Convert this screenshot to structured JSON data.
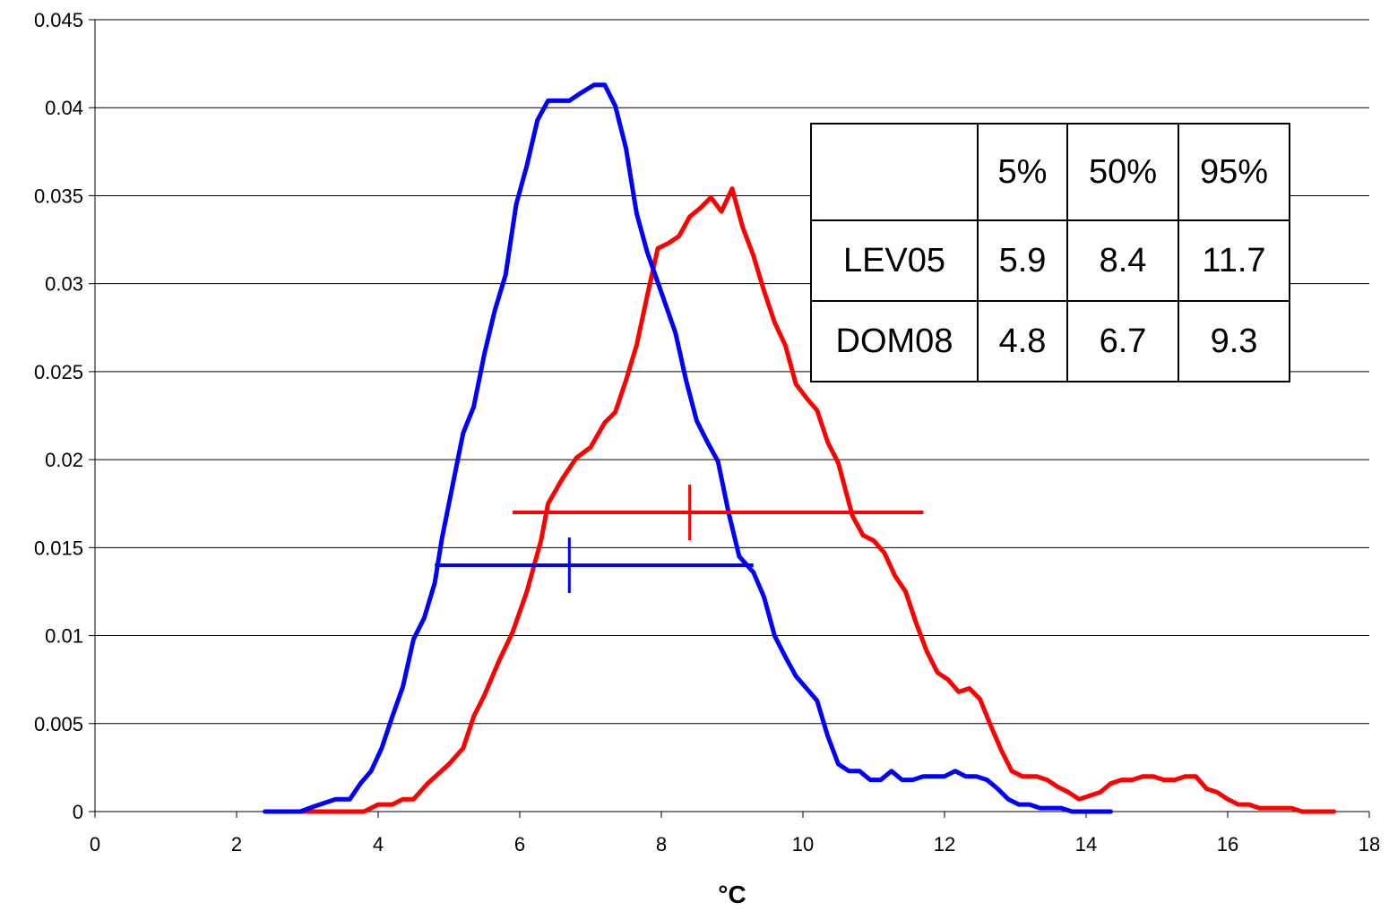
{
  "chart_data": {
    "type": "line",
    "title": "",
    "xlabel": "°C",
    "ylabel": "",
    "xlim": [
      0,
      18
    ],
    "ylim": [
      0,
      0.045
    ],
    "x_ticks": [
      "0",
      "2",
      "4",
      "6",
      "8",
      "10",
      "12",
      "14",
      "16",
      "18"
    ],
    "y_ticks": [
      "0",
      "0.005",
      "0.01",
      "0.015",
      "0.02",
      "0.025",
      "0.03",
      "0.035",
      "0.04",
      "0.045"
    ],
    "grid": "horizontal",
    "series": [
      {
        "color": "#ff0000",
        "points": [
          [
            2.9,
            0
          ],
          [
            3.2,
            0
          ],
          [
            3.5,
            0
          ],
          [
            3.8,
            0
          ],
          [
            4.0,
            0.0004
          ],
          [
            4.2,
            0.0004
          ],
          [
            4.35,
            0.0007
          ],
          [
            4.5,
            0.0007
          ],
          [
            4.7,
            0.0016
          ],
          [
            5.0,
            0.0027
          ],
          [
            5.2,
            0.0036
          ],
          [
            5.35,
            0.0054
          ],
          [
            5.5,
            0.0066
          ],
          [
            5.7,
            0.0085
          ],
          [
            5.9,
            0.0102
          ],
          [
            6.1,
            0.0125
          ],
          [
            6.3,
            0.0154
          ],
          [
            6.4,
            0.0175
          ],
          [
            6.6,
            0.0189
          ],
          [
            6.8,
            0.0201
          ],
          [
            7.0,
            0.0207
          ],
          [
            7.2,
            0.0221
          ],
          [
            7.35,
            0.0227
          ],
          [
            7.5,
            0.0245
          ],
          [
            7.65,
            0.0265
          ],
          [
            7.8,
            0.0293
          ],
          [
            7.95,
            0.032
          ],
          [
            8.1,
            0.0323
          ],
          [
            8.25,
            0.0327
          ],
          [
            8.4,
            0.0338
          ],
          [
            8.55,
            0.0343
          ],
          [
            8.7,
            0.0349
          ],
          [
            8.85,
            0.0341
          ],
          [
            9.0,
            0.0354
          ],
          [
            9.15,
            0.0332
          ],
          [
            9.3,
            0.0316
          ],
          [
            9.45,
            0.0296
          ],
          [
            9.6,
            0.0278
          ],
          [
            9.75,
            0.0265
          ],
          [
            9.9,
            0.0243
          ],
          [
            10.05,
            0.0235
          ],
          [
            10.2,
            0.0228
          ],
          [
            10.35,
            0.021
          ],
          [
            10.5,
            0.0198
          ],
          [
            10.7,
            0.0168
          ],
          [
            10.85,
            0.0157
          ],
          [
            11.0,
            0.0154
          ],
          [
            11.15,
            0.0147
          ],
          [
            11.3,
            0.0134
          ],
          [
            11.45,
            0.0125
          ],
          [
            11.6,
            0.0107
          ],
          [
            11.75,
            0.0091
          ],
          [
            11.9,
            0.0079
          ],
          [
            12.05,
            0.0075
          ],
          [
            12.2,
            0.0068
          ],
          [
            12.35,
            0.007
          ],
          [
            12.5,
            0.0064
          ],
          [
            12.65,
            0.0049
          ],
          [
            12.8,
            0.0035
          ],
          [
            12.95,
            0.0023
          ],
          [
            13.1,
            0.002
          ],
          [
            13.3,
            0.002
          ],
          [
            13.45,
            0.0018
          ],
          [
            13.6,
            0.0014
          ],
          [
            13.75,
            0.0011
          ],
          [
            13.9,
            0.0007
          ],
          [
            14.05,
            0.0009
          ],
          [
            14.2,
            0.0011
          ],
          [
            14.35,
            0.0016
          ],
          [
            14.5,
            0.0018
          ],
          [
            14.65,
            0.0018
          ],
          [
            14.8,
            0.002
          ],
          [
            14.95,
            0.002
          ],
          [
            15.1,
            0.0018
          ],
          [
            15.25,
            0.0018
          ],
          [
            15.4,
            0.002
          ],
          [
            15.55,
            0.002
          ],
          [
            15.7,
            0.0013
          ],
          [
            15.85,
            0.0011
          ],
          [
            16.0,
            0.0007
          ],
          [
            16.15,
            0.0004
          ],
          [
            16.3,
            0.0004
          ],
          [
            16.45,
            0.0002
          ],
          [
            16.6,
            0.0002
          ],
          [
            16.75,
            0.0002
          ],
          [
            16.9,
            0.0002
          ],
          [
            17.05,
            0
          ],
          [
            17.2,
            0
          ],
          [
            17.4,
            0
          ],
          [
            17.5,
            0
          ]
        ],
        "interval": {
          "y": 0.017,
          "p5": 5.9,
          "p50": 8.4,
          "p95": 11.7
        }
      },
      {
        "color": "#0000ff",
        "points": [
          [
            2.4,
            0
          ],
          [
            2.6,
            0
          ],
          [
            2.9,
            0
          ],
          [
            3.1,
            0.0003
          ],
          [
            3.4,
            0.0007
          ],
          [
            3.6,
            0.0007
          ],
          [
            3.75,
            0.0016
          ],
          [
            3.9,
            0.0023
          ],
          [
            4.05,
            0.0036
          ],
          [
            4.2,
            0.0054
          ],
          [
            4.35,
            0.0071
          ],
          [
            4.5,
            0.0098
          ],
          [
            4.65,
            0.011
          ],
          [
            4.8,
            0.013
          ],
          [
            4.9,
            0.0155
          ],
          [
            5.05,
            0.0185
          ],
          [
            5.2,
            0.0215
          ],
          [
            5.35,
            0.023
          ],
          [
            5.5,
            0.026
          ],
          [
            5.65,
            0.0285
          ],
          [
            5.8,
            0.0305
          ],
          [
            5.95,
            0.0345
          ],
          [
            6.1,
            0.0367
          ],
          [
            6.25,
            0.0393
          ],
          [
            6.4,
            0.0404
          ],
          [
            6.55,
            0.0404
          ],
          [
            6.7,
            0.0404
          ],
          [
            6.85,
            0.0408
          ],
          [
            7.05,
            0.0413
          ],
          [
            7.2,
            0.0413
          ],
          [
            7.35,
            0.0401
          ],
          [
            7.5,
            0.0377
          ],
          [
            7.65,
            0.034
          ],
          [
            7.8,
            0.0318
          ],
          [
            8.0,
            0.0295
          ],
          [
            8.2,
            0.0272
          ],
          [
            8.35,
            0.0245
          ],
          [
            8.5,
            0.0222
          ],
          [
            8.65,
            0.021
          ],
          [
            8.8,
            0.0199
          ],
          [
            8.95,
            0.017
          ],
          [
            9.1,
            0.0145
          ],
          [
            9.3,
            0.0136
          ],
          [
            9.45,
            0.0122
          ],
          [
            9.6,
            0.01
          ],
          [
            9.75,
            0.0088
          ],
          [
            9.9,
            0.0077
          ],
          [
            10.05,
            0.007
          ],
          [
            10.2,
            0.0063
          ],
          [
            10.35,
            0.0043
          ],
          [
            10.5,
            0.0027
          ],
          [
            10.65,
            0.0023
          ],
          [
            10.8,
            0.0023
          ],
          [
            10.95,
            0.0018
          ],
          [
            11.1,
            0.0018
          ],
          [
            11.25,
            0.0023
          ],
          [
            11.4,
            0.0018
          ],
          [
            11.55,
            0.0018
          ],
          [
            11.7,
            0.002
          ],
          [
            11.85,
            0.002
          ],
          [
            12.0,
            0.002
          ],
          [
            12.15,
            0.0023
          ],
          [
            12.3,
            0.002
          ],
          [
            12.45,
            0.002
          ],
          [
            12.6,
            0.0018
          ],
          [
            12.75,
            0.0013
          ],
          [
            12.9,
            0.0007
          ],
          [
            13.05,
            0.0004
          ],
          [
            13.2,
            0.0004
          ],
          [
            13.35,
            0.0002
          ],
          [
            13.5,
            0.0002
          ],
          [
            13.65,
            0.0002
          ],
          [
            13.8,
            0
          ],
          [
            14.0,
            0
          ],
          [
            14.2,
            0
          ],
          [
            14.35,
            0
          ]
        ],
        "interval": {
          "y": 0.014,
          "p5": 4.8,
          "p50": 6.7,
          "p95": 9.3
        }
      }
    ],
    "table": {
      "header": [
        "",
        "5%",
        "50%",
        "95%"
      ],
      "rows": [
        [
          "LEV05",
          "5.9",
          "8.4",
          "11.7"
        ],
        [
          "DOM08",
          "4.8",
          "6.7",
          "9.3"
        ]
      ]
    }
  }
}
